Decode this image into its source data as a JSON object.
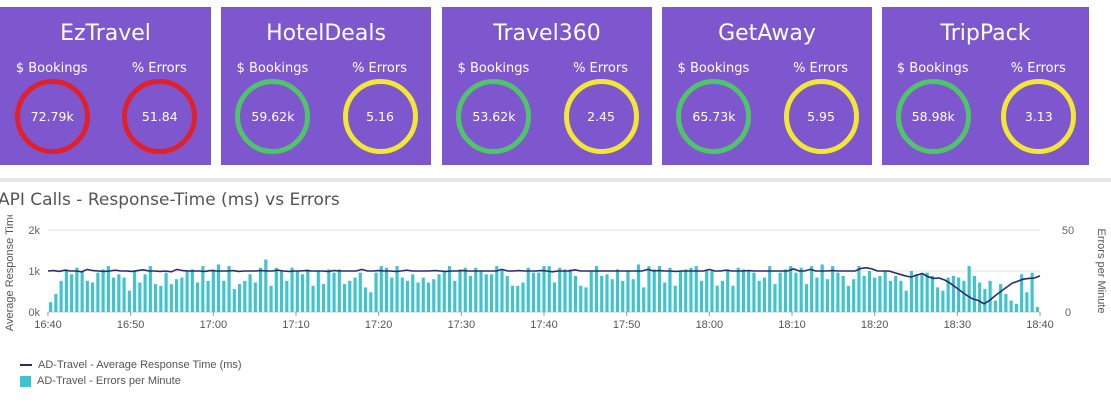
{
  "tiles": [
    {
      "name": "EzTravel",
      "bookings_label": "$ Bookings",
      "errors_label": "% Errors",
      "bookings": "72.79k",
      "errors": "51.84",
      "bookings_color": "#e0202a",
      "errors_color": "#e0202a"
    },
    {
      "name": "HotelDeals",
      "bookings_label": "$ Bookings",
      "errors_label": "% Errors",
      "bookings": "59.62k",
      "errors": "5.16",
      "bookings_color": "#4fc46a",
      "errors_color": "#f2e733"
    },
    {
      "name": "Travel360",
      "bookings_label": "$ Bookings",
      "errors_label": "% Errors",
      "bookings": "53.62k",
      "errors": "2.45",
      "bookings_color": "#4fc46a",
      "errors_color": "#f2e733"
    },
    {
      "name": "GetAway",
      "bookings_label": "$ Bookings",
      "errors_label": "% Errors",
      "bookings": "65.73k",
      "errors": "5.95",
      "bookings_color": "#4fc46a",
      "errors_color": "#f2e733"
    },
    {
      "name": "TripPack",
      "bookings_label": "$ Bookings",
      "errors_label": "% Errors",
      "bookings": "58.98k",
      "errors": "3.13",
      "bookings_color": "#4fc46a",
      "errors_color": "#f2e733"
    }
  ],
  "chart_data": {
    "type": "bar",
    "title": "API Calls - Response-Time (ms) vs Errors",
    "ylabel_left": "Average Response Time",
    "ylabel_right": "Errors per Minute",
    "ylim_left": [
      0,
      2000
    ],
    "ylim_right": [
      0,
      50
    ],
    "yticks_left": [
      "0k",
      "1k",
      "2k"
    ],
    "yticks_right": [
      "0",
      "50"
    ],
    "x_start": "16:40",
    "x_end": "18:40",
    "x_ticks": [
      "16:40",
      "16:50",
      "17:00",
      "17:10",
      "17:20",
      "17:30",
      "17:40",
      "17:50",
      "18:00",
      "18:10",
      "18:20",
      "18:30",
      "18:40"
    ],
    "grid": true,
    "legend_position": "bottom-left",
    "colors": {
      "line": "#2b2a6a",
      "bars": "#3ec4cf"
    },
    "series": [
      {
        "name": "AD-Travel - Average Response Time (ms)",
        "type": "line",
        "axis": "left",
        "values": [
          1000,
          1010,
          990,
          1020,
          1000,
          1000,
          980,
          1040,
          1010,
          1000,
          990,
          1000,
          1020,
          1000,
          1000,
          990,
          1010,
          1030,
          1000,
          1000,
          990,
          1000,
          980,
          1040,
          1010,
          1000,
          1000,
          1000,
          990,
          1010,
          1000,
          1000,
          1000,
          1010,
          990,
          1000,
          1000,
          1000,
          1010,
          1000,
          1000,
          1020,
          1000,
          990,
          1000,
          1000,
          1010,
          1000,
          1000,
          1000,
          990,
          1010,
          1000,
          1000,
          1000,
          1000,
          1040,
          1000,
          1000,
          1010,
          1000,
          1000,
          990,
          1000,
          1020,
          1000,
          1000,
          1000,
          1000,
          1010,
          1000,
          990,
          1000,
          1000,
          1010,
          1000,
          1000,
          1000,
          1000,
          1000,
          1000,
          1040,
          1000,
          1000,
          1010,
          1000,
          1000,
          1000,
          1010,
          1000,
          980,
          1000,
          1000,
          1000,
          1030,
          1000,
          1000,
          1000,
          1000,
          1000,
          1000,
          1000,
          1000,
          1000,
          1000,
          1000,
          1000,
          1040,
          1000,
          1010,
          1000,
          1000,
          990,
          1000,
          1000,
          1000,
          1000,
          1000,
          1040,
          1000,
          1000,
          1020,
          1000,
          1000,
          1000,
          1010,
          1000,
          1000,
          1000,
          1000,
          1000,
          1000,
          1000,
          1050,
          1000,
          1000,
          1040,
          1000,
          1000,
          1000,
          1010,
          1000,
          1000,
          1000,
          1000,
          1060,
          1080,
          1050,
          1000,
          1000,
          1000,
          960,
          920,
          880,
          850,
          900,
          940,
          860,
          820,
          830,
          780,
          700,
          600,
          500,
          400,
          320,
          280,
          200,
          280,
          400,
          500,
          600,
          700,
          750,
          800,
          820,
          830,
          880
        ]
      },
      {
        "name": "AD-Travel - Errors per Minute",
        "type": "bar",
        "axis": "right",
        "values": [
          6,
          11,
          19,
          26,
          23,
          27,
          25,
          19,
          18,
          24,
          26,
          28,
          21,
          23,
          21,
          13,
          25,
          18,
          23,
          28,
          17,
          16,
          24,
          17,
          20,
          21,
          25,
          26,
          18,
          28,
          19,
          26,
          29,
          19,
          28,
          14,
          17,
          19,
          23,
          18,
          27,
          32,
          16,
          27,
          25,
          19,
          27,
          25,
          23,
          26,
          16,
          25,
          17,
          26,
          24,
          26,
          17,
          19,
          21,
          24,
          15,
          12,
          24,
          28,
          27,
          21,
          28,
          21,
          19,
          23,
          18,
          21,
          18,
          20,
          23,
          25,
          28,
          19,
          26,
          27,
          22,
          27,
          25,
          23,
          23,
          28,
          26,
          22,
          16,
          16,
          18,
          27,
          24,
          24,
          28,
          28,
          18,
          27,
          26,
          26,
          22,
          16,
          15,
          25,
          28,
          22,
          23,
          20,
          26,
          19,
          25,
          20,
          29,
          15,
          28,
          26,
          28,
          18,
          27,
          16,
          25,
          26,
          27,
          28,
          19,
          26,
          25,
          16,
          19,
          26,
          16,
          27,
          26,
          25,
          24,
          19,
          21,
          28,
          17,
          24,
          26,
          28,
          24,
          27,
          17,
          28,
          21,
          29,
          20,
          28,
          24,
          22,
          16,
          20,
          28,
          22,
          25,
          21,
          22,
          25,
          19,
          22,
          19,
          13,
          25,
          23,
          23,
          24,
          22,
          15,
          13,
          21,
          22,
          21,
          19,
          28,
          22,
          18,
          14,
          19,
          7,
          17,
          11,
          7,
          5,
          23,
          12,
          24,
          3
        ]
      }
    ]
  }
}
